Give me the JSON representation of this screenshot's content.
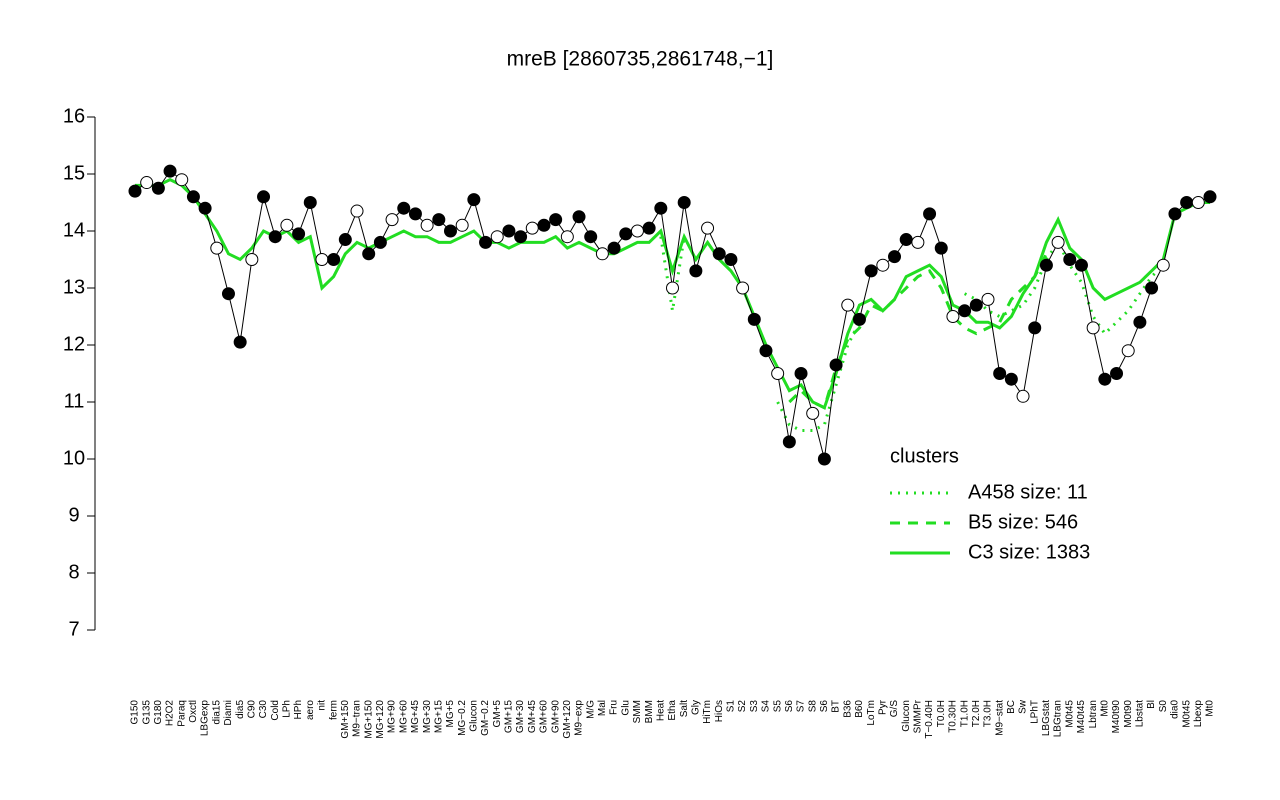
{
  "chart_data": {
    "type": "line",
    "title": "mreB [2860735,2861748,−1]",
    "ylim": [
      7,
      16
    ],
    "yticks": [
      7,
      8,
      9,
      10,
      11,
      12,
      13,
      14,
      15,
      16
    ],
    "color": "#000000",
    "categories": [
      "G150",
      "G135",
      "G180",
      "H2O2",
      "Paraq",
      "Oxctl",
      "LBGexp",
      "dia15",
      "Diami",
      "dia5",
      "C90",
      "C30",
      "Cold",
      "LPh",
      "HPh",
      "aero",
      "nit",
      "ferm",
      "GM+150",
      "M9−tran",
      "MG+150",
      "MG+120",
      "MG+90",
      "MG+60",
      "MG+45",
      "MG+30",
      "MG+15",
      "MG+5",
      "MG−0.2",
      "Glucon",
      "GM−0.2",
      "GM+5",
      "GM+15",
      "GM+30",
      "GM+45",
      "GM+60",
      "GM+90",
      "GM+120",
      "M9−exp",
      "M/G",
      "Mal",
      "Fru",
      "Glu",
      "SMM",
      "BMM",
      "Heat",
      "Etha",
      "Salt",
      "Gly",
      "HiTm",
      "HiOs",
      "S1",
      "S2",
      "S3",
      "S4",
      "S5",
      "S6",
      "S7",
      "S8",
      "S6",
      "BT",
      "B36",
      "B60",
      "LoTm",
      "Pyr",
      "G/S",
      "Glucon",
      "SMMPr",
      "T−0.40H",
      "T0.0H",
      "T0.30H",
      "T1.0H",
      "T2.0H",
      "T3.0H",
      "M9−stat",
      "BC",
      "Sw",
      "LPhT",
      "LBGstat",
      "LBGtran",
      "M0t45",
      "M40t45",
      "Lbtran",
      "Mt0",
      "M40t90",
      "M0t90",
      "Lbstat",
      "Bl",
      "S0",
      "dia0",
      "M0t45",
      "Lbexp",
      "Mt0"
    ],
    "values": [
      14.7,
      14.85,
      14.75,
      15.05,
      14.9,
      14.6,
      14.4,
      13.7,
      12.9,
      12.05,
      13.5,
      14.6,
      13.9,
      14.1,
      13.95,
      14.5,
      13.5,
      13.5,
      13.85,
      14.35,
      13.6,
      13.8,
      14.2,
      14.4,
      14.3,
      14.1,
      14.2,
      14.0,
      14.1,
      14.55,
      13.8,
      13.9,
      14.0,
      13.9,
      14.05,
      14.1,
      14.2,
      13.9,
      14.25,
      13.9,
      13.6,
      13.7,
      13.95,
      14.0,
      14.05,
      14.4,
      13.0,
      14.5,
      13.3,
      14.05,
      13.6,
      13.5,
      13.0,
      12.45,
      11.9,
      11.5,
      10.3,
      11.5,
      10.8,
      10.0,
      11.65,
      12.7,
      12.45,
      13.3,
      13.4,
      13.55,
      13.85,
      13.8,
      14.3,
      13.7,
      12.5,
      12.6,
      12.7,
      12.8,
      11.5,
      11.4,
      11.1,
      12.3,
      13.4,
      13.8,
      13.5,
      13.4,
      12.3,
      11.4,
      11.5,
      11.9,
      12.4,
      13.0,
      13.4,
      14.3,
      14.5,
      14.5,
      14.6
    ],
    "legend_title": "clusters",
    "series": [
      {
        "name": "A458 size: 11",
        "color": "#22dd22",
        "dash": "dotted",
        "values": [
          null,
          null,
          null,
          null,
          null,
          null,
          null,
          null,
          null,
          null,
          null,
          null,
          null,
          null,
          null,
          null,
          null,
          null,
          null,
          null,
          null,
          null,
          null,
          null,
          null,
          null,
          null,
          null,
          null,
          null,
          null,
          null,
          null,
          null,
          null,
          null,
          null,
          null,
          null,
          null,
          null,
          null,
          null,
          null,
          null,
          13.9,
          12.6,
          13.9,
          null,
          null,
          null,
          null,
          null,
          null,
          null,
          11.0,
          10.6,
          10.5,
          10.5,
          10.6,
          11.3,
          12.0,
          12.4,
          null,
          null,
          null,
          null,
          null,
          null,
          null,
          null,
          12.9,
          12.8,
          12.6,
          12.5,
          12.6,
          12.7,
          13.0,
          13.5,
          13.8,
          13.4,
          13.1,
          12.5,
          12.2,
          12.4,
          12.6,
          12.9,
          13.2,
          13.4,
          null,
          null,
          null,
          null
        ]
      },
      {
        "name": "B5 size: 546",
        "color": "#22dd22",
        "dash": "dashed",
        "values": [
          null,
          null,
          null,
          null,
          null,
          null,
          null,
          null,
          null,
          null,
          null,
          null,
          null,
          null,
          null,
          null,
          null,
          null,
          null,
          null,
          null,
          null,
          null,
          null,
          null,
          null,
          null,
          null,
          null,
          null,
          null,
          null,
          null,
          null,
          null,
          null,
          null,
          null,
          null,
          null,
          null,
          null,
          null,
          null,
          null,
          null,
          null,
          null,
          null,
          null,
          null,
          null,
          null,
          null,
          null,
          null,
          11.0,
          11.2,
          11.0,
          10.9,
          11.6,
          12.1,
          12.3,
          12.7,
          12.6,
          12.8,
          13.0,
          13.2,
          13.3,
          13.0,
          12.5,
          12.3,
          12.2,
          12.3,
          12.4,
          12.8,
          13.0,
          13.2,
          13.6,
          null,
          null,
          null,
          null,
          null,
          null,
          null,
          null,
          null,
          null,
          null,
          null,
          null,
          null
        ]
      },
      {
        "name": "C3 size: 1383",
        "color": "#22dd22",
        "dash": "solid",
        "values": [
          14.8,
          14.8,
          14.8,
          14.9,
          14.8,
          14.6,
          14.3,
          14.0,
          13.6,
          13.5,
          13.7,
          14.0,
          13.9,
          14.0,
          13.8,
          13.9,
          13.0,
          13.2,
          13.6,
          13.8,
          13.7,
          13.8,
          13.9,
          14.0,
          13.9,
          13.9,
          13.8,
          13.8,
          13.9,
          14.0,
          13.8,
          13.8,
          13.7,
          13.8,
          13.8,
          13.8,
          13.9,
          13.7,
          13.8,
          13.7,
          13.6,
          13.6,
          13.7,
          13.8,
          13.8,
          14.0,
          13.3,
          13.9,
          13.5,
          13.8,
          13.5,
          13.3,
          13.0,
          12.5,
          12.0,
          11.6,
          11.2,
          11.3,
          11.0,
          10.9,
          11.5,
          12.2,
          12.7,
          12.8,
          12.6,
          12.8,
          13.2,
          13.3,
          13.4,
          13.2,
          12.7,
          12.6,
          12.4,
          12.4,
          12.3,
          12.5,
          12.9,
          13.2,
          13.8,
          14.2,
          13.7,
          13.5,
          13.0,
          12.8,
          12.9,
          13.0,
          13.1,
          13.3,
          13.5,
          14.3,
          14.4,
          14.5,
          14.5
        ]
      }
    ]
  }
}
